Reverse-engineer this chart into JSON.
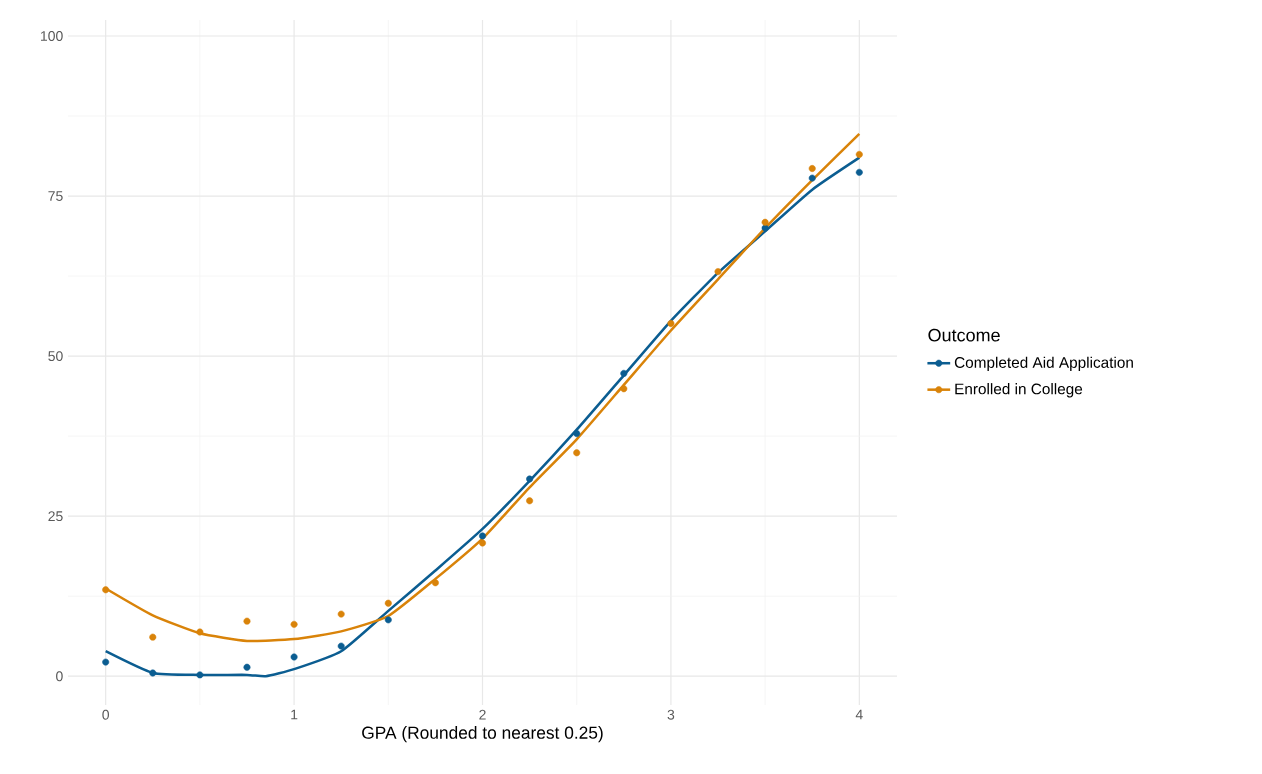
{
  "chart_data": {
    "type": "scatter",
    "xlabel": "GPA (Rounded to nearest 0.25)",
    "legend_title": "Outcome",
    "legend": "right",
    "grid": true,
    "xlim": [
      -0.2,
      4.2
    ],
    "ylim": [
      -4.5,
      102.5
    ],
    "xticks": [
      0,
      1,
      2,
      3,
      4
    ],
    "yticks": [
      0,
      25,
      50,
      75,
      100
    ],
    "series": [
      {
        "name": "Completed Aid Application",
        "color": "#0b5d91",
        "marker": "circle",
        "x": [
          0,
          0.25,
          0.5,
          0.75,
          1,
          1.25,
          1.5,
          1.75,
          2,
          2.25,
          2.5,
          2.75,
          3,
          3.25,
          3.5,
          3.75,
          4
        ],
        "values": [
          2.2,
          0.5,
          0.2,
          1.4,
          3.0,
          4.7,
          8.8,
          null,
          21.9,
          30.8,
          37.9,
          47.3,
          null,
          null,
          70,
          77.8,
          78.7
        ]
      },
      {
        "name": "Enrolled in College",
        "color": "#d98309",
        "marker": "circle",
        "x": [
          0,
          0.25,
          0.5,
          0.75,
          1,
          1.25,
          1.5,
          1.75,
          2,
          2.25,
          2.5,
          2.75,
          3,
          3.25,
          3.5,
          3.75,
          4
        ],
        "values": [
          13.5,
          6.1,
          6.9,
          8.6,
          8.1,
          9.7,
          11.4,
          14.6,
          20.8,
          27.4,
          34.9,
          44.9,
          55.1,
          63.2,
          70.9,
          79.3,
          81.5
        ]
      },
      {
        "color": "#0b5d91",
        "type": "line",
        "marker": "none",
        "x": [
          0,
          0.25,
          0.5,
          0.75,
          0.85,
          1,
          1.25,
          1.5,
          1.75,
          2,
          2.25,
          2.5,
          2.75,
          3,
          3.25,
          3.5,
          3.75,
          4
        ],
        "values": [
          3.9,
          0.5,
          0.2,
          0.2,
          0,
          1.1,
          3.9,
          10.2,
          16.5,
          23,
          30.5,
          38.5,
          47,
          55.5,
          63,
          69.5,
          76,
          81
        ]
      },
      {
        "color": "#d98309",
        "type": "line",
        "marker": "none",
        "x": [
          0,
          0.25,
          0.5,
          0.75,
          1,
          1.25,
          1.5,
          1.75,
          2,
          2.25,
          2.5,
          2.75,
          3,
          3.25,
          3.5,
          3.75,
          4
        ],
        "values": [
          13.7,
          9.5,
          6.7,
          5.5,
          5.8,
          7.0,
          9.4,
          15.2,
          21.5,
          29.5,
          37,
          45.5,
          54,
          62,
          70,
          77.5,
          84.7
        ]
      }
    ]
  }
}
